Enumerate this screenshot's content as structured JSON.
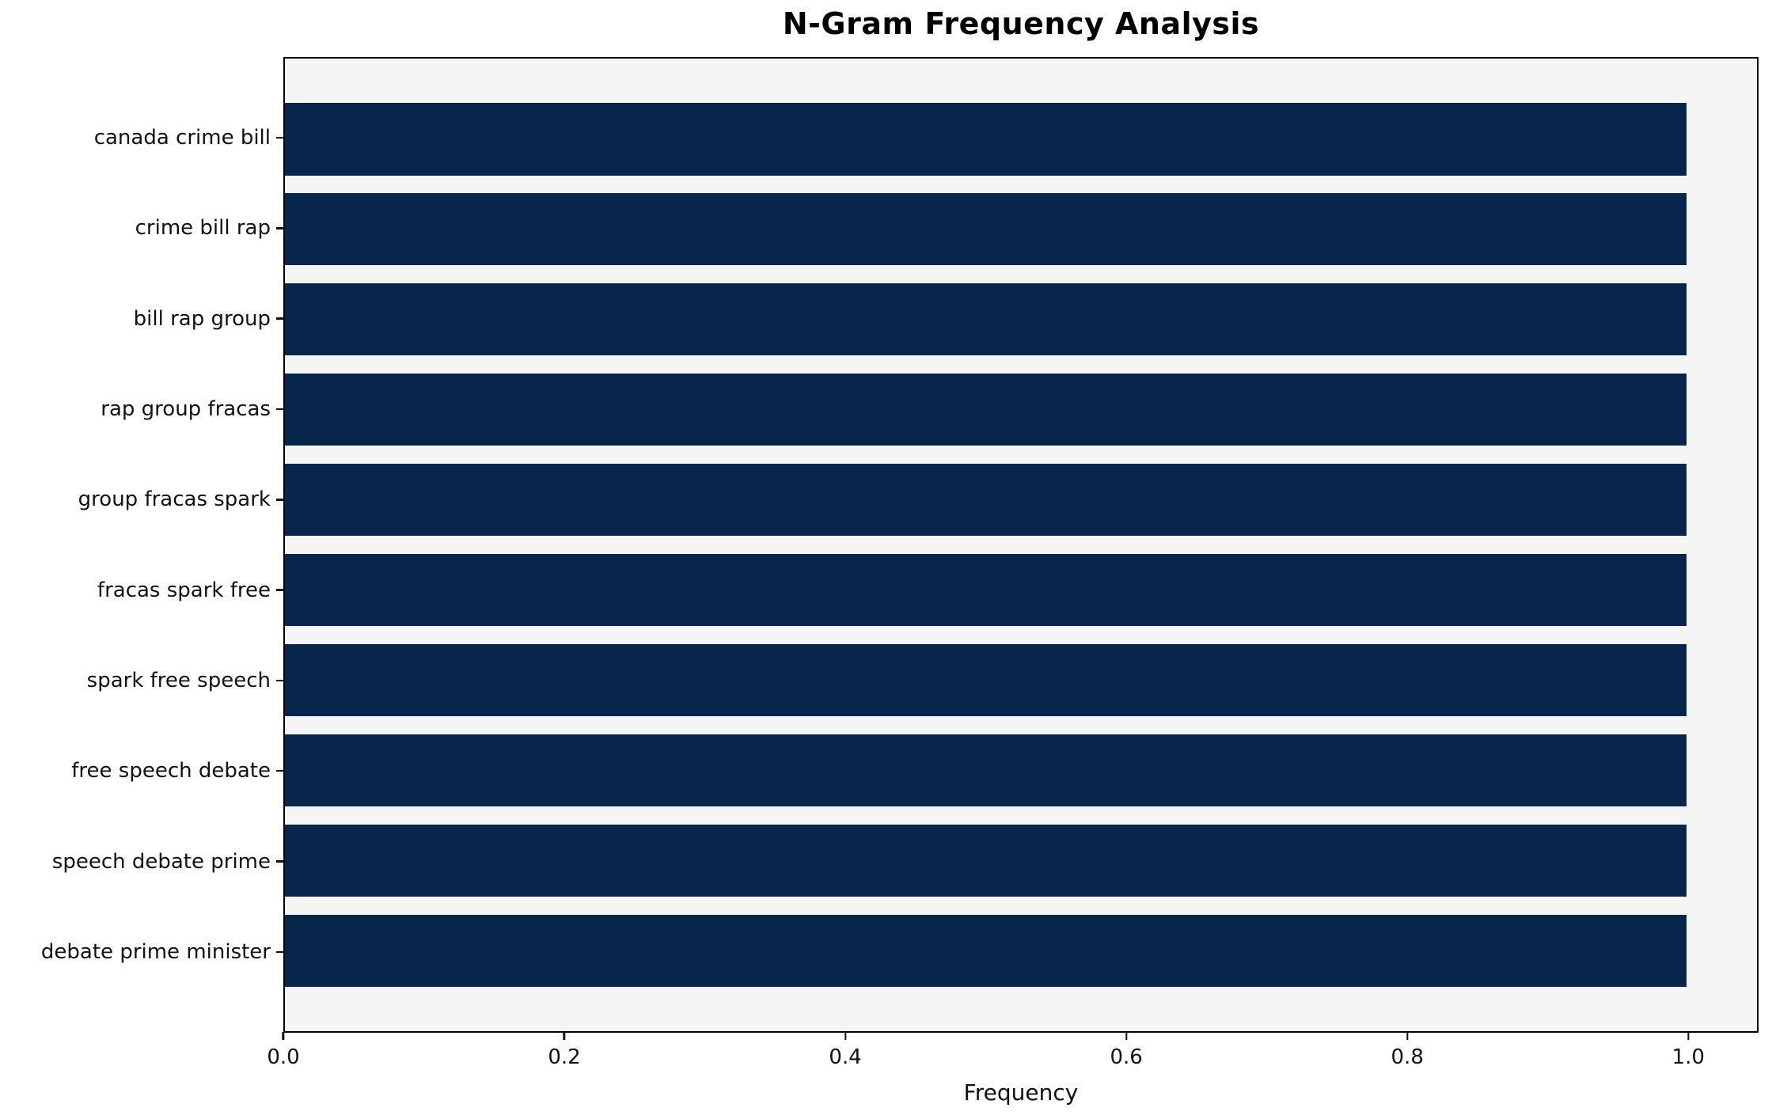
{
  "chart_data": {
    "type": "bar",
    "orientation": "horizontal",
    "title": "N-Gram Frequency Analysis",
    "xlabel": "Frequency",
    "ylabel": "",
    "categories": [
      "canada crime bill",
      "crime bill rap",
      "bill rap group",
      "rap group fracas",
      "group fracas spark",
      "fracas spark free",
      "spark free speech",
      "free speech debate",
      "speech debate prime",
      "debate prime minister"
    ],
    "values": [
      1.0,
      1.0,
      1.0,
      1.0,
      1.0,
      1.0,
      1.0,
      1.0,
      1.0,
      1.0
    ],
    "xticks": [
      0.0,
      0.2,
      0.4,
      0.6,
      0.8,
      1.0
    ],
    "xtick_labels": [
      "0.0",
      "0.2",
      "0.4",
      "0.6",
      "0.8",
      "1.0"
    ],
    "xlim": [
      0.0,
      1.05
    ],
    "grid": false,
    "legend_position": "none",
    "colors": {
      "bar": "#08254b",
      "plot_background": "#f5f5f5",
      "figure_background": "#ffffff",
      "spine": "#000000",
      "text": "#111111"
    }
  }
}
